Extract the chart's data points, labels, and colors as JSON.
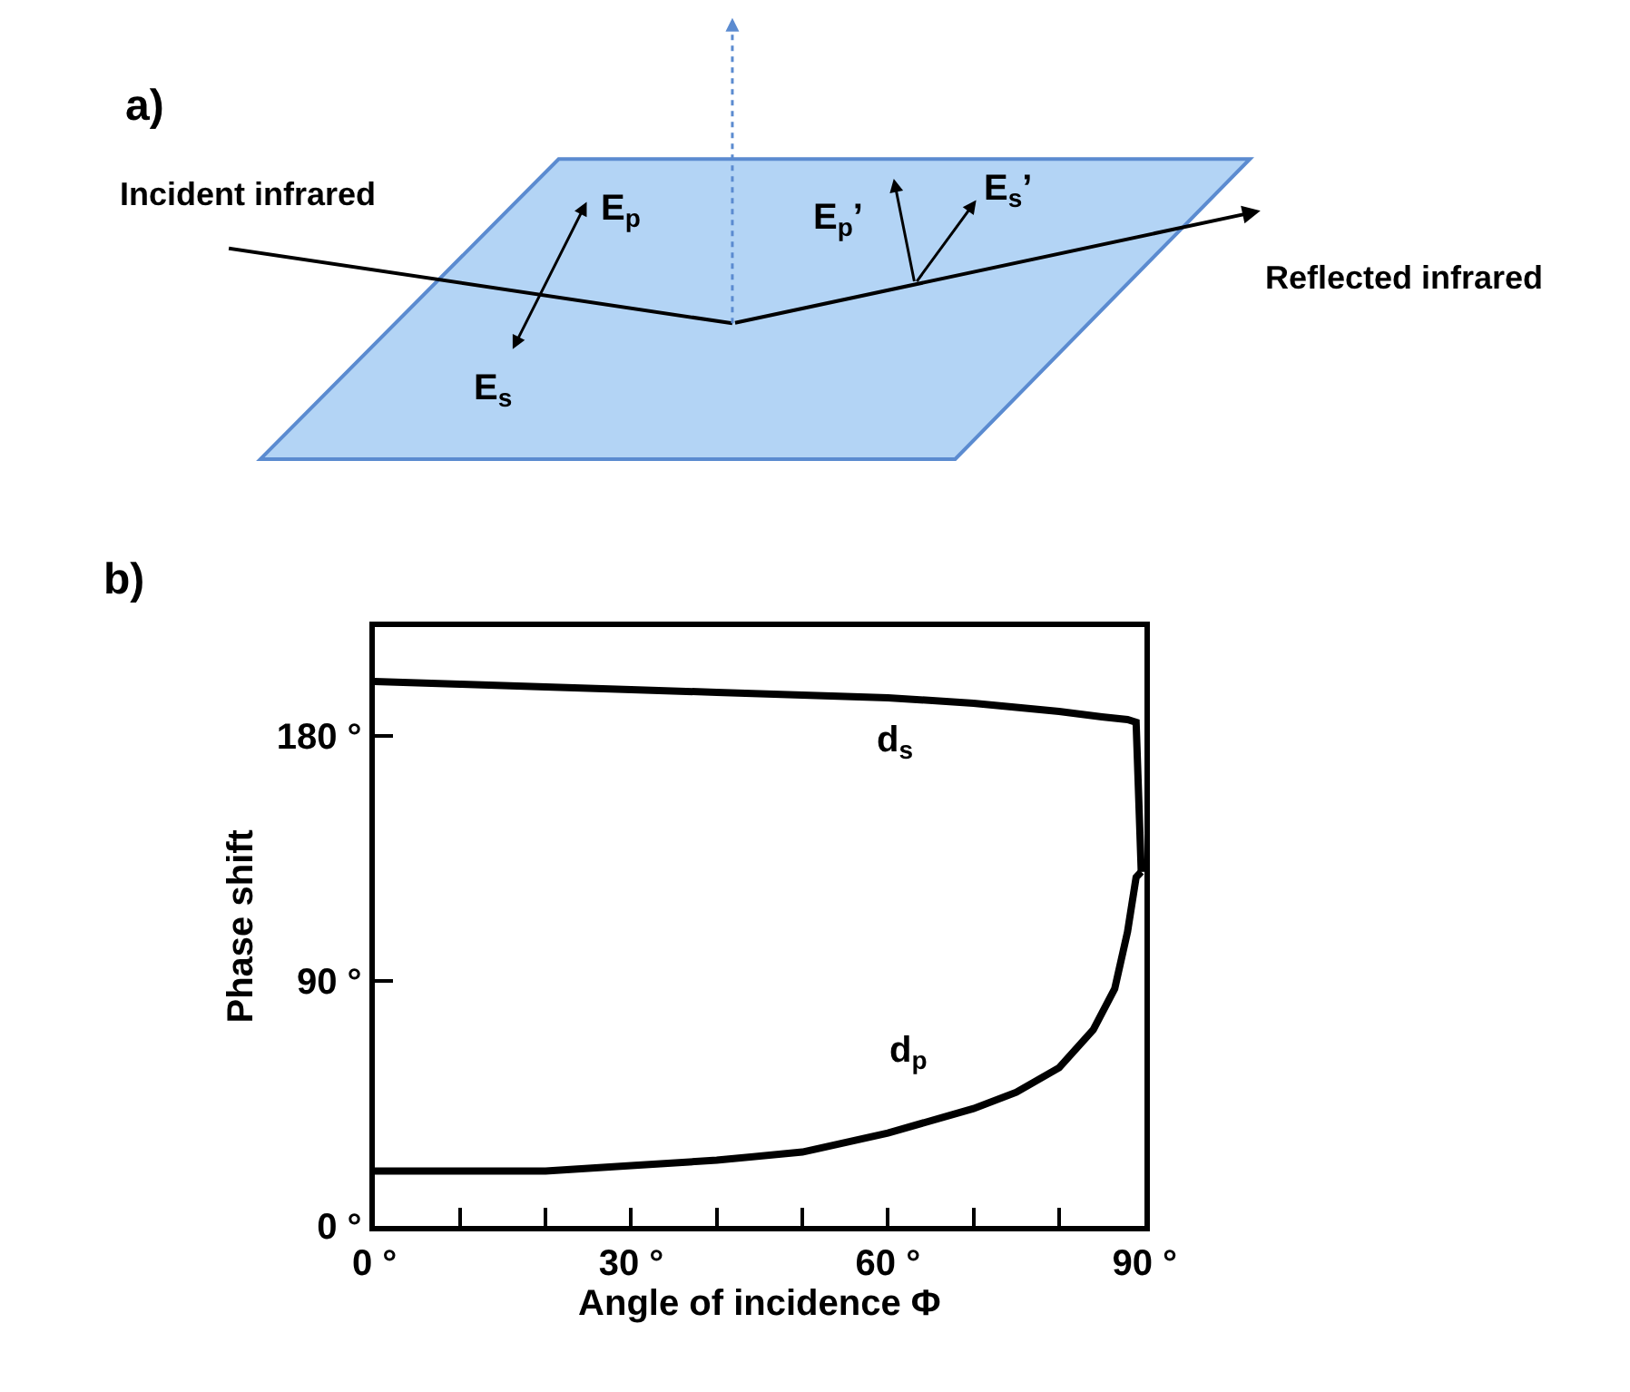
{
  "chart_data": [
    {
      "type": "other",
      "title": "a)",
      "annotations": [
        "Incident infrared",
        "E$_{p}$",
        "E$_{s}$",
        "E$_{p}$’",
        "E$_{s}$’",
        "Reflected infrared"
      ]
    },
    {
      "type": "line",
      "title": "b)",
      "xlabel": "Angle of incidence Φ",
      "ylabel": "Phase shift",
      "xlim": [
        0,
        90
      ],
      "ylim": [
        0,
        220
      ],
      "xticks": [
        {
          "value": 0,
          "label": "0 °"
        },
        {
          "value": 10,
          "label": null
        },
        {
          "value": 20,
          "label": null
        },
        {
          "value": 30,
          "label": "30 °"
        },
        {
          "value": 40,
          "label": null
        },
        {
          "value": 50,
          "label": null
        },
        {
          "value": 60,
          "label": "60 °"
        },
        {
          "value": 70,
          "label": null
        },
        {
          "value": 80,
          "label": null
        },
        {
          "value": 90,
          "label": "90 °"
        }
      ],
      "yticks": [
        {
          "value": 0,
          "label": "0 °"
        },
        {
          "value": 90,
          "label": "90 °"
        },
        {
          "value": 180,
          "label": "180 °"
        }
      ],
      "marker": "none",
      "line_style": "solid",
      "series": [
        {
          "color": "#000000",
          "x": [
            0,
            10,
            20,
            30,
            40,
            50,
            60,
            70,
            80,
            85,
            88,
            89,
            89.6
          ],
          "values": [
            200,
            199,
            198,
            197,
            196,
            195,
            194,
            192,
            189,
            187,
            186,
            185,
            130
          ]
        },
        {
          "color": "#000000",
          "x": [
            0,
            10,
            20,
            30,
            40,
            50,
            60,
            70,
            75,
            80,
            84,
            86.5,
            88,
            89,
            89.6
          ],
          "values": [
            20,
            20,
            20,
            22,
            24,
            27,
            34,
            43,
            49,
            58,
            72,
            87,
            108,
            128,
            130
          ]
        }
      ],
      "annotations": [
        "d$_{s}$",
        "d$_{p}$"
      ]
    }
  ]
}
